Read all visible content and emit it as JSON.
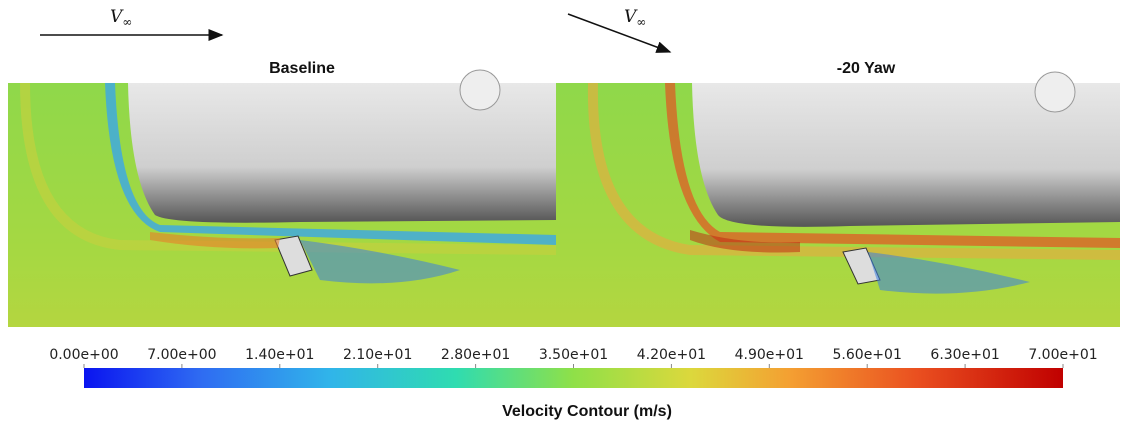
{
  "panels": [
    {
      "title": "Baseline",
      "flow_label": {
        "symbol": "V",
        "subscript": "∞"
      }
    },
    {
      "title": "-20 Yaw",
      "flow_label": {
        "symbol": "V",
        "subscript": "∞"
      }
    }
  ],
  "colorbar": {
    "label": "Velocity Contour (m/s)",
    "ticks": [
      {
        "value": 0,
        "label": "0.00e+00"
      },
      {
        "value": 7,
        "label": "7.00e+00"
      },
      {
        "value": 14,
        "label": "1.40e+01"
      },
      {
        "value": 21,
        "label": "2.10e+01"
      },
      {
        "value": 28,
        "label": "2.80e+01"
      },
      {
        "value": 35,
        "label": "3.50e+01"
      },
      {
        "value": 42,
        "label": "4.20e+01"
      },
      {
        "value": 49,
        "label": "4.90e+01"
      },
      {
        "value": 56,
        "label": "5.60e+01"
      },
      {
        "value": 63,
        "label": "6.30e+01"
      },
      {
        "value": 70,
        "label": "7.00e+01"
      }
    ]
  }
}
